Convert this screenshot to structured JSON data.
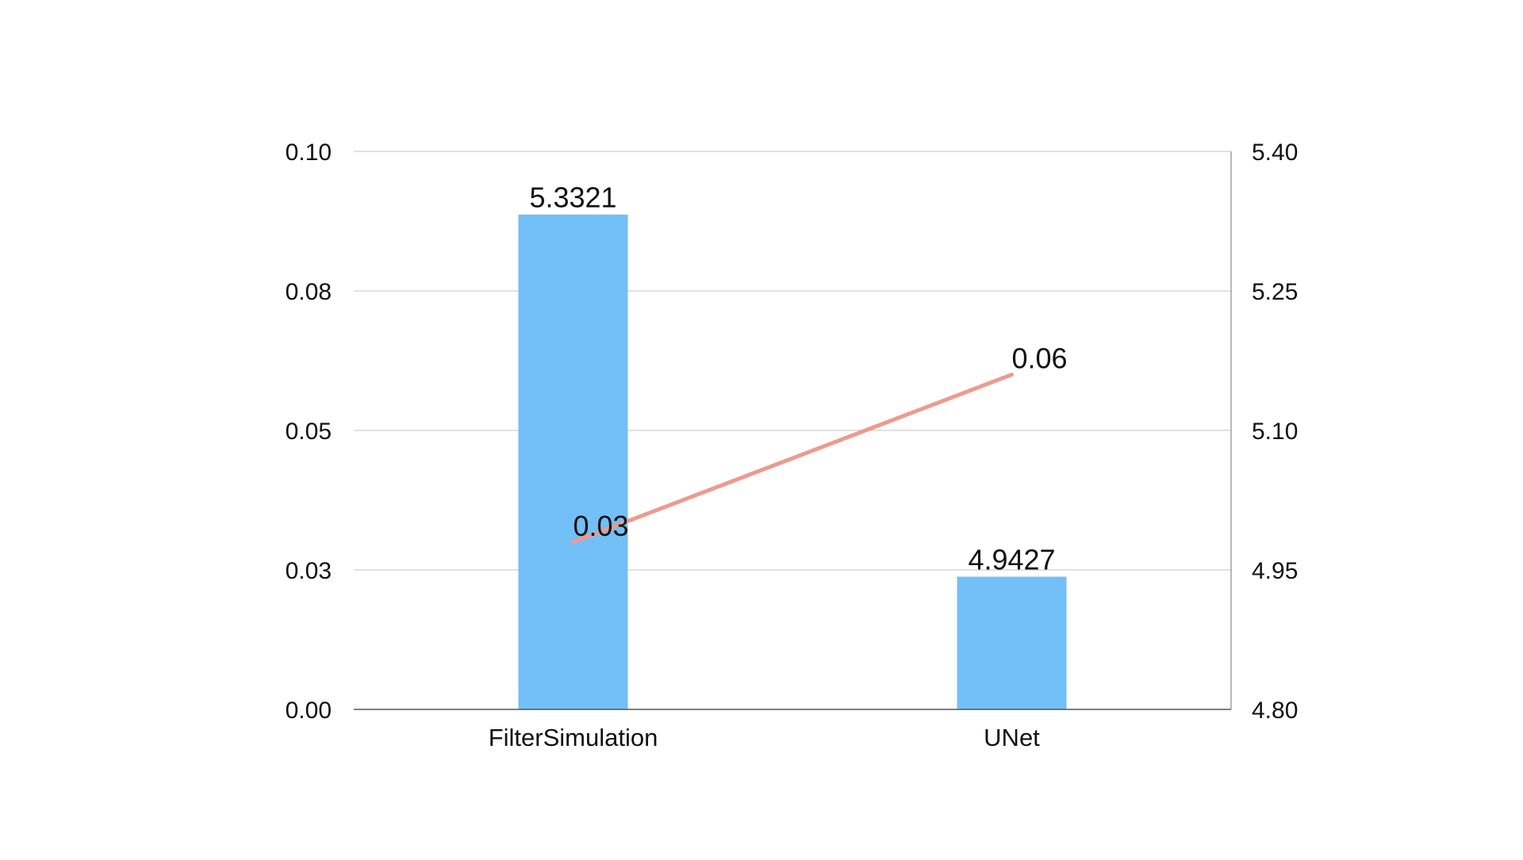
{
  "chart_data": {
    "type": "bar+line",
    "categories": [
      "FilterSimulation",
      "UNet"
    ],
    "series": [
      {
        "type": "bar",
        "axis": "right",
        "values": [
          5.3321,
          4.9427
        ],
        "labels": [
          "5.3321",
          "4.9427"
        ],
        "color": "#73BFF8"
      },
      {
        "type": "line",
        "axis": "left",
        "values": [
          0.03,
          0.06
        ],
        "labels": [
          "0.03",
          "0.06"
        ],
        "color": "#EE9A8E"
      }
    ],
    "left_axis": {
      "ylim": [
        0,
        0.1
      ],
      "ticks": [
        0,
        0.025,
        0.05,
        0.075,
        0.1
      ],
      "tick_labels": [
        "0.00",
        "0.03",
        "0.05",
        "0.08",
        "0.10"
      ]
    },
    "right_axis": {
      "ylim": [
        4.8,
        5.4
      ],
      "ticks": [
        4.8,
        4.95,
        5.1,
        5.25,
        5.4
      ],
      "tick_labels": [
        "4.80",
        "4.95",
        "5.10",
        "5.25",
        "5.40"
      ]
    },
    "grid": true,
    "legend": "none"
  }
}
